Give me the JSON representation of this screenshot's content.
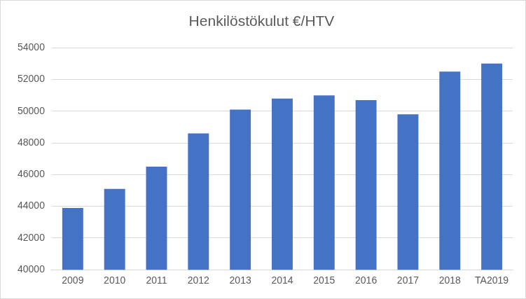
{
  "chart_data": {
    "type": "bar",
    "title": "Henkilöstökulut €/HTV",
    "categories": [
      "2009",
      "2010",
      "2011",
      "2012",
      "2013",
      "2014",
      "2015",
      "2016",
      "2017",
      "2018",
      "TA2019"
    ],
    "values": [
      43900,
      45100,
      46500,
      48600,
      50100,
      50800,
      51000,
      50700,
      49800,
      52500,
      53000
    ],
    "color": "#4472c4",
    "ylim": [
      40000,
      54000
    ],
    "yticks": [
      40000,
      42000,
      44000,
      46000,
      48000,
      50000,
      52000,
      54000
    ],
    "grid": true
  }
}
